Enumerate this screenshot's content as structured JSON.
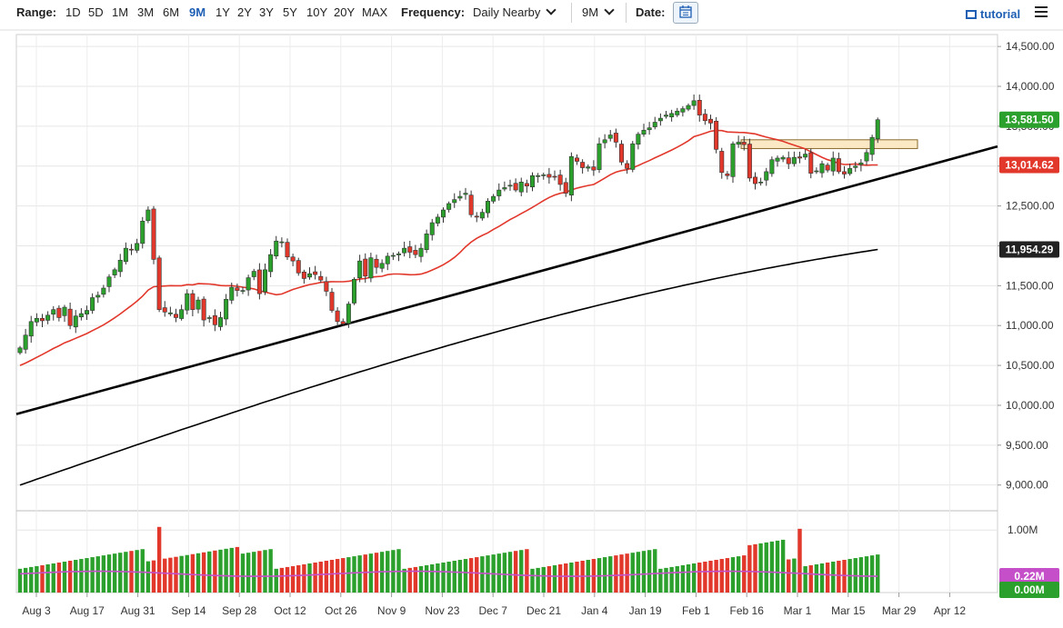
{
  "toolbar": {
    "range_label": "Range:",
    "ranges": [
      "1D",
      "5D",
      "1M",
      "3M",
      "6M",
      "9M",
      "1Y",
      "2Y",
      "3Y",
      "5Y",
      "10Y",
      "20Y",
      "MAX"
    ],
    "active_range": "9M",
    "frequency_label": "Frequency:",
    "frequency_value": "Daily Nearby",
    "period_value": "9M",
    "date_label": "Date:",
    "tutorial_label": "tutorial"
  },
  "chart_data": {
    "type": "candlestick",
    "price_axis": {
      "ticks": [
        "14,500.00",
        "14,000.00",
        "13,500.00",
        "13,000.00",
        "12,500.00",
        "12,000.00",
        "11,500.00",
        "11,000.00",
        "10,500.00",
        "10,000.00",
        "9,500.00",
        "9,000.00"
      ],
      "range": [
        8700,
        14650
      ]
    },
    "x_ticks": [
      "Aug 3",
      "Aug 17",
      "Aug 31",
      "Sep 14",
      "Sep 28",
      "Oct 12",
      "Oct 26",
      "Nov 9",
      "Nov 23",
      "Dec 7",
      "Dec 21",
      "Jan 4",
      "Jan 19",
      "Feb 1",
      "Feb 16",
      "Mar 1",
      "Mar 15",
      "Mar 29",
      "Apr 12"
    ],
    "closes": [
      10720,
      10880,
      11050,
      11090,
      11060,
      11130,
      11200,
      11100,
      11230,
      11000,
      11120,
      11150,
      11190,
      11350,
      11380,
      11470,
      11610,
      11700,
      11820,
      11970,
      11950,
      12030,
      12310,
      12450,
      11830,
      11200,
      11170,
      11160,
      11100,
      11200,
      11400,
      11200,
      11320,
      11070,
      11100,
      11010,
      11100,
      11330,
      11480,
      11440,
      11440,
      11600,
      11680,
      11400,
      11700,
      11890,
      12060,
      12050,
      11860,
      11810,
      11660,
      11590,
      11650,
      11640,
      11570,
      11430,
      11190,
      11050,
      11020,
      11270,
      11580,
      11810,
      11620,
      11850,
      11730,
      11780,
      11870,
      11880,
      11900,
      11970,
      11920,
      11890,
      11970,
      12150,
      12290,
      12360,
      12450,
      12530,
      12580,
      12620,
      12660,
      12390,
      12360,
      12420,
      12560,
      12620,
      12700,
      12730,
      12760,
      12700,
      12800,
      12750,
      12880,
      12880,
      12890,
      12860,
      12870,
      12770,
      12660,
      13120,
      13060,
      12980,
      12990,
      12950,
      13280,
      13330,
      13390,
      13300,
      13050,
      12970,
      13280,
      13400,
      13450,
      13480,
      13550,
      13600,
      13640,
      13660,
      13690,
      13720,
      13760,
      13820,
      13640,
      13570,
      13540,
      13210,
      12920,
      12880,
      13280,
      13300,
      13270,
      12850,
      12780,
      12800,
      12930,
      13080,
      13100,
      13110,
      13030,
      13110,
      13100,
      13150,
      12910,
      12940,
      13030,
      12950,
      13100,
      12930,
      12900,
      12970,
      13000,
      13040,
      13170,
      13360,
      13581.5
    ],
    "sma_50_label": "13,014.62",
    "sma_200_label": "11,954.29",
    "last_price_label": "13,581.50",
    "sma_50_endpoints": [
      [
        0,
        10500
      ],
      [
        158,
        13014.62
      ]
    ],
    "sma_200_endpoints": [
      [
        0,
        9000
      ],
      [
        158,
        11954.29
      ]
    ],
    "trendline_endpoints": [
      [
        0,
        9890
      ],
      [
        158,
        12900
      ]
    ],
    "resistance_zone": [
      13220,
      13330
    ],
    "volume_axis": {
      "ticks": [
        "1.00M"
      ],
      "max": 1.25
    },
    "volume_labels": [
      "0.22M",
      "0.00M"
    ],
    "colors": {
      "up": "#2ca02c",
      "down": "#e2372b",
      "sma_50": "#e2372b",
      "sma_200": "#000000",
      "trendline": "#000000",
      "zone_fill": "#fbe9c5",
      "zone_stroke": "#8a6a2c",
      "volume_avg": "#c44fc9",
      "price_tag": "#2ca02c",
      "sma_tag": "#e2372b",
      "neutral_tag": "#222222",
      "volume_tag": "#c44fc9"
    }
  }
}
